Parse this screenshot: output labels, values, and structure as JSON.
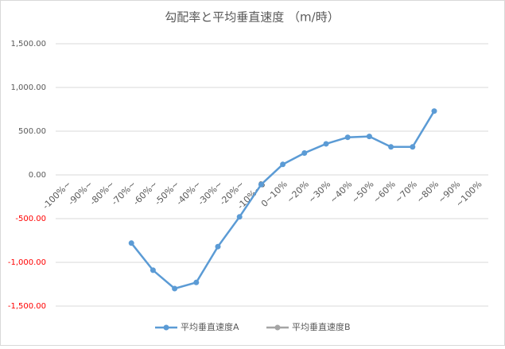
{
  "chart_data": {
    "type": "line",
    "title": "勾配率と平均垂直速度 （m/時）",
    "categories": [
      "-100%~",
      "-90%~",
      "-80%~",
      "-70%~",
      "-60%~",
      "-50%~",
      "-40%~",
      "-30%~",
      "-20%~",
      "-10%~0",
      "0~10%",
      "~20%",
      "~30%",
      "~40%",
      "~50%",
      "~60%",
      "~70%",
      "~80%",
      "~90%",
      "~100%"
    ],
    "series": [
      {
        "name": "平均垂直速度A",
        "color": "#5b9bd5",
        "values": [
          null,
          null,
          null,
          -780,
          -1090,
          -1300,
          -1230,
          -820,
          -480,
          -110,
          120,
          250,
          355,
          430,
          440,
          320,
          320,
          730,
          null,
          null
        ]
      },
      {
        "name": "平均垂直速度B",
        "color": "#a5a5a5",
        "values": [
          null,
          null,
          null,
          null,
          null,
          null,
          null,
          null,
          null,
          null,
          null,
          null,
          null,
          null,
          null,
          null,
          null,
          null,
          null,
          null
        ]
      }
    ],
    "ylim": [
      -1500,
      1500
    ],
    "yticks": [
      {
        "value": -1500,
        "label": "-1,500.00"
      },
      {
        "value": -1000,
        "label": "-1,000.00"
      },
      {
        "value": -500,
        "label": "-500.00"
      },
      {
        "value": 0,
        "label": "0.00"
      },
      {
        "value": 500,
        "label": "500.00"
      },
      {
        "value": 1000,
        "label": "1,000.00"
      },
      {
        "value": 1500,
        "label": "1,500.00"
      }
    ],
    "negative_tick_color": "#ff0000",
    "grid": true,
    "legend": "bottom"
  }
}
